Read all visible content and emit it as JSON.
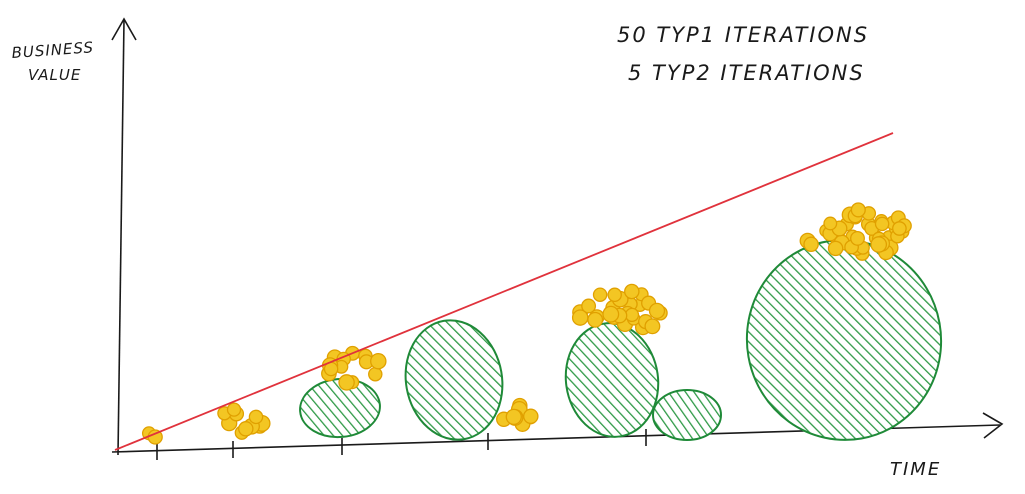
{
  "diagram": {
    "y_axis_label_line1": "BUSINESS",
    "y_axis_label_line2": "VALUE",
    "x_axis_label": "TIME",
    "note_line1": "50 TYP1 ITERATIONS",
    "note_line2": "5 TYP2 ITERATIONS"
  },
  "colors": {
    "axis": "#1a1a1a",
    "trend_line": "#e0323c",
    "type1_fill": "#f3c623",
    "type1_stroke": "#e0a000",
    "type2_fill": "#2f9a47",
    "type2_stroke": "#1f8a38"
  }
}
